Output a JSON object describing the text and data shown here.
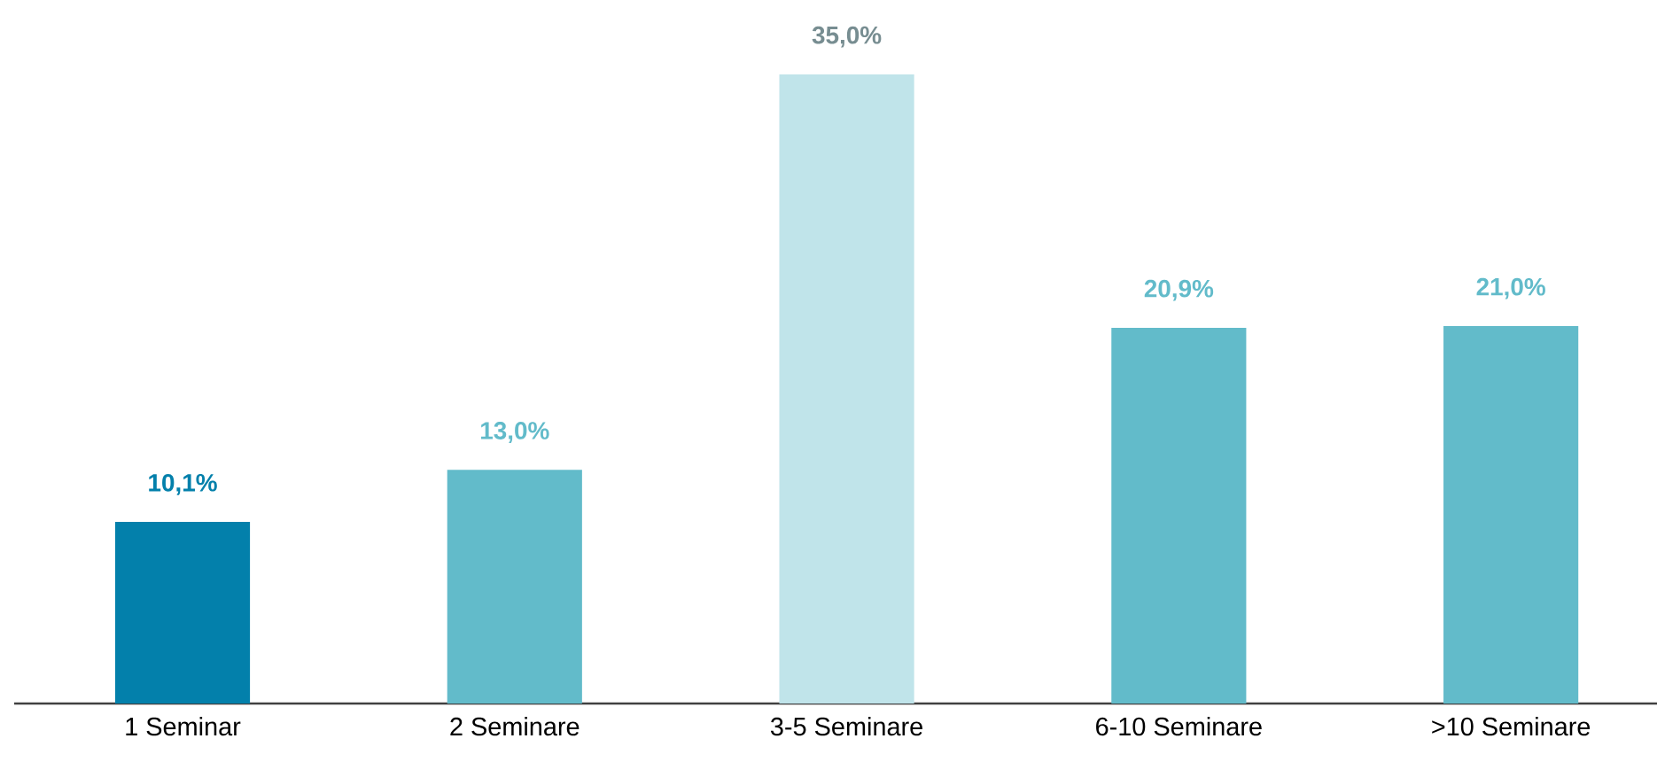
{
  "chart_data": {
    "type": "bar",
    "categories": [
      "1 Seminar",
      "2 Seminare",
      "3-5 Seminare",
      "6-10 Seminare",
      ">10 Seminare"
    ],
    "values": [
      10.1,
      13.0,
      35.0,
      20.9,
      21.0
    ],
    "colors": [
      "#0380ab",
      "#62bbca",
      "#c0e4ea",
      "#62bbca",
      "#62bbca"
    ],
    "value_labels": [
      "10,1%",
      "13,0%",
      "35,0%",
      "20,9%",
      "21,0%"
    ]
  }
}
